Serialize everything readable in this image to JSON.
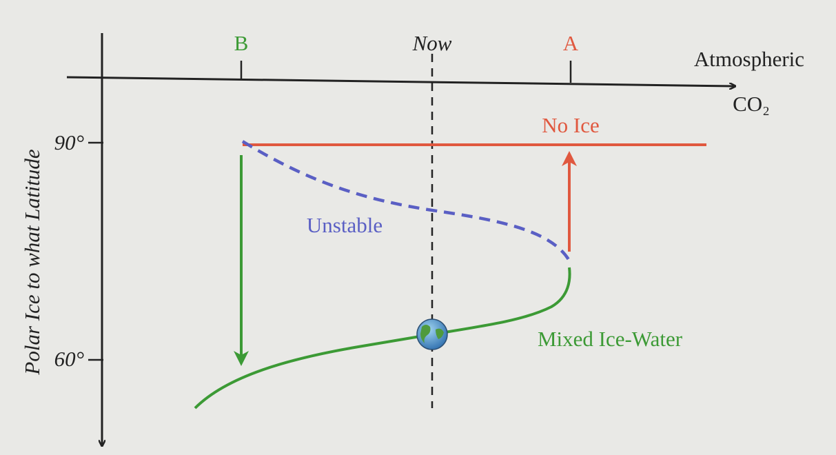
{
  "diagram": {
    "x_axis": {
      "label_line1": "Atmospheric",
      "label_line2": "CO₂",
      "ticks": [
        "B",
        "Now",
        "A"
      ]
    },
    "y_axis": {
      "label": "Polar Ice to what Latitude",
      "ticks": [
        "90°",
        "60°"
      ]
    },
    "branches": {
      "no_ice": "No Ice",
      "unstable": "Unstable",
      "mixed": "Mixed Ice-Water"
    }
  }
}
